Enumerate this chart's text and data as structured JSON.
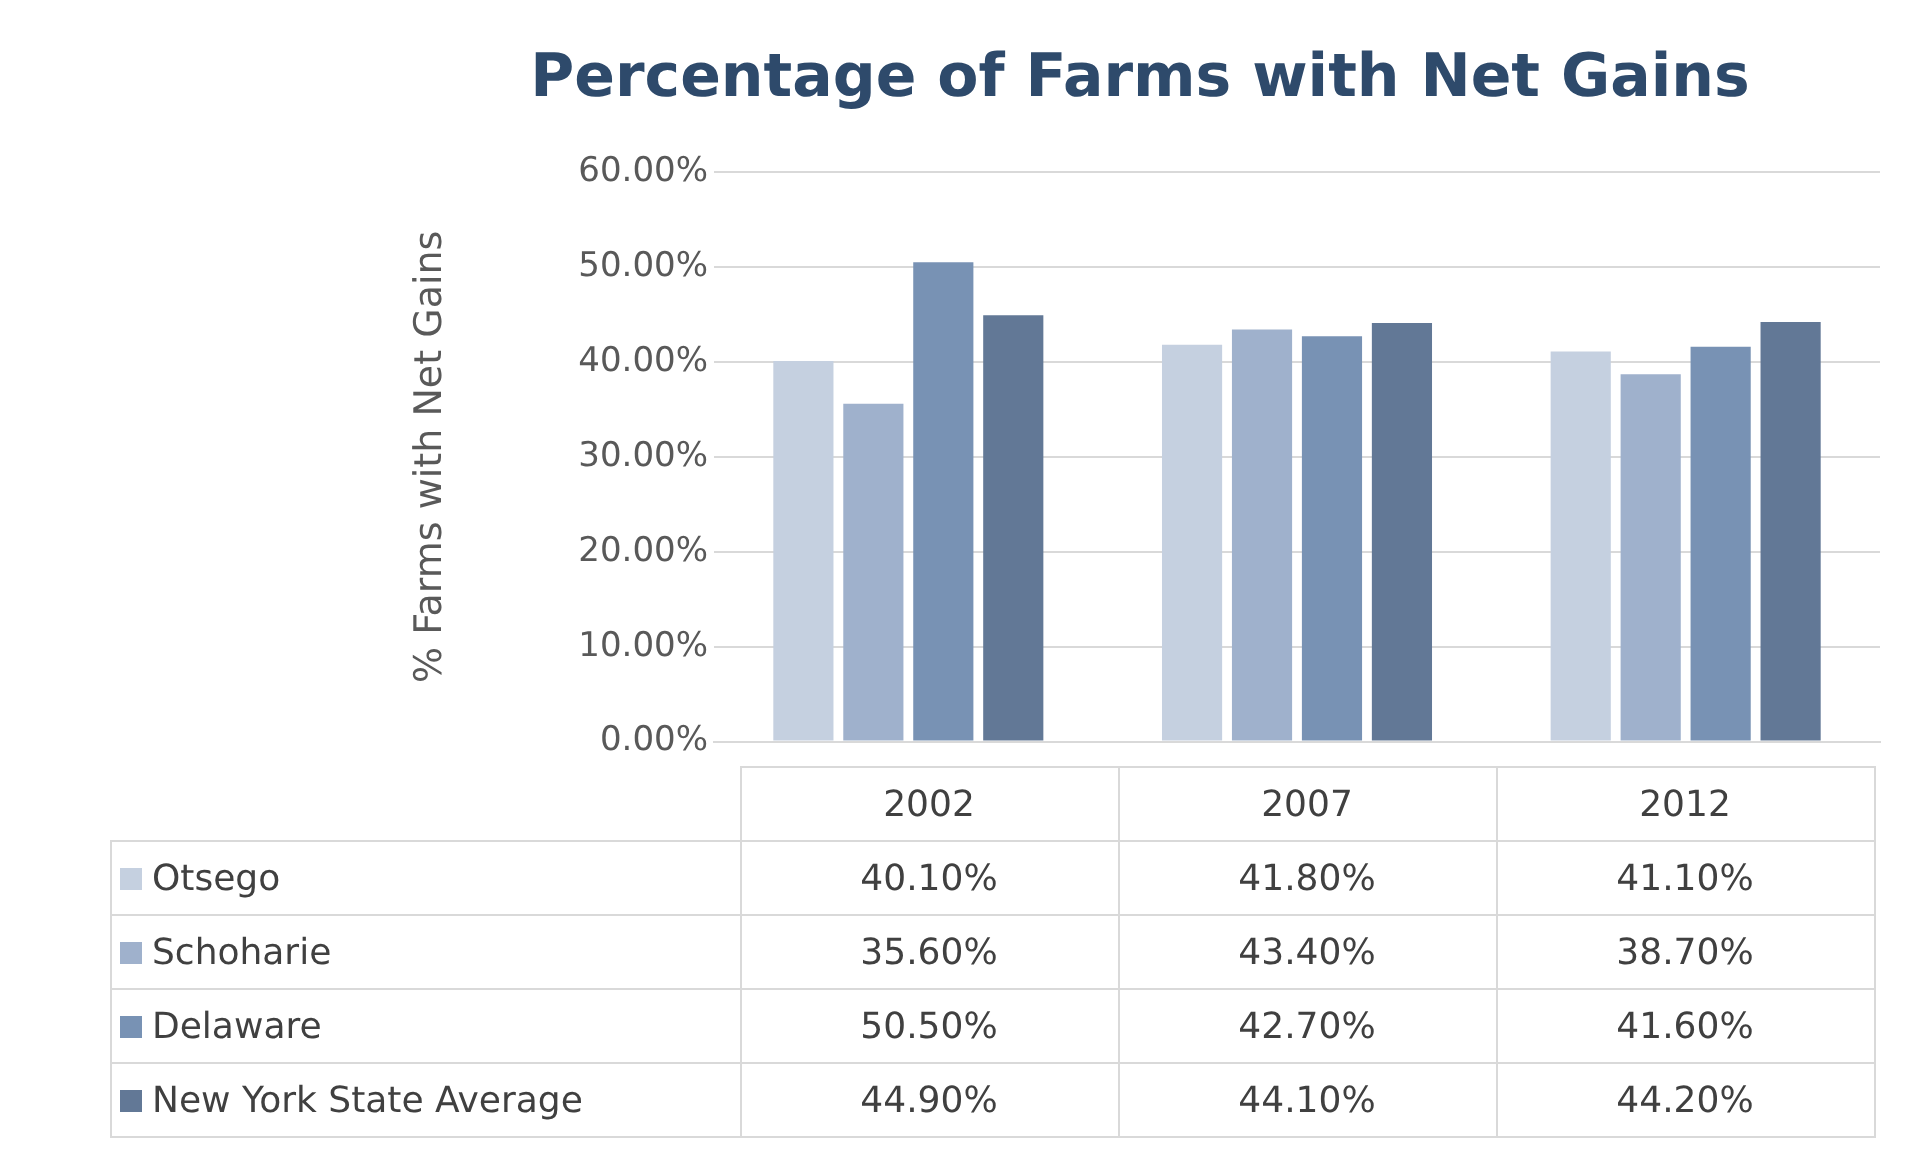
{
  "chart_data": {
    "type": "bar",
    "title": "Percentage of Farms with Net Gains",
    "ylabel": "% Farms with Net Gains",
    "categories": [
      "2002",
      "2007",
      "2012"
    ],
    "series": [
      {
        "name": "Otsego",
        "color": "#c5d0e0",
        "values": [
          40.1,
          41.8,
          41.1
        ]
      },
      {
        "name": "Schoharie",
        "color": "#9fb1cc",
        "values": [
          35.6,
          43.4,
          38.7
        ]
      },
      {
        "name": "Delaware",
        "color": "#7892b4",
        "values": [
          50.5,
          42.7,
          41.6
        ]
      },
      {
        "name": "New York State Average",
        "color": "#627896",
        "values": [
          44.9,
          44.1,
          44.2
        ]
      }
    ],
    "ylim": [
      0,
      60
    ],
    "yticks": [
      {
        "value": 0,
        "label": "0.00%"
      },
      {
        "value": 10,
        "label": "10.00%"
      },
      {
        "value": 20,
        "label": "20.00%"
      },
      {
        "value": 30,
        "label": "30.00%"
      },
      {
        "value": 40,
        "label": "40.00%"
      },
      {
        "value": 50,
        "label": "50.00%"
      },
      {
        "value": 60,
        "label": "60.00%"
      }
    ],
    "value_labels": [
      [
        "40.10%",
        "41.80%",
        "41.10%"
      ],
      [
        "35.60%",
        "43.40%",
        "38.70%"
      ],
      [
        "50.50%",
        "42.70%",
        "41.60%"
      ],
      [
        "44.90%",
        "44.10%",
        "44.20%"
      ]
    ],
    "grid": "y",
    "legend": "bottom"
  }
}
